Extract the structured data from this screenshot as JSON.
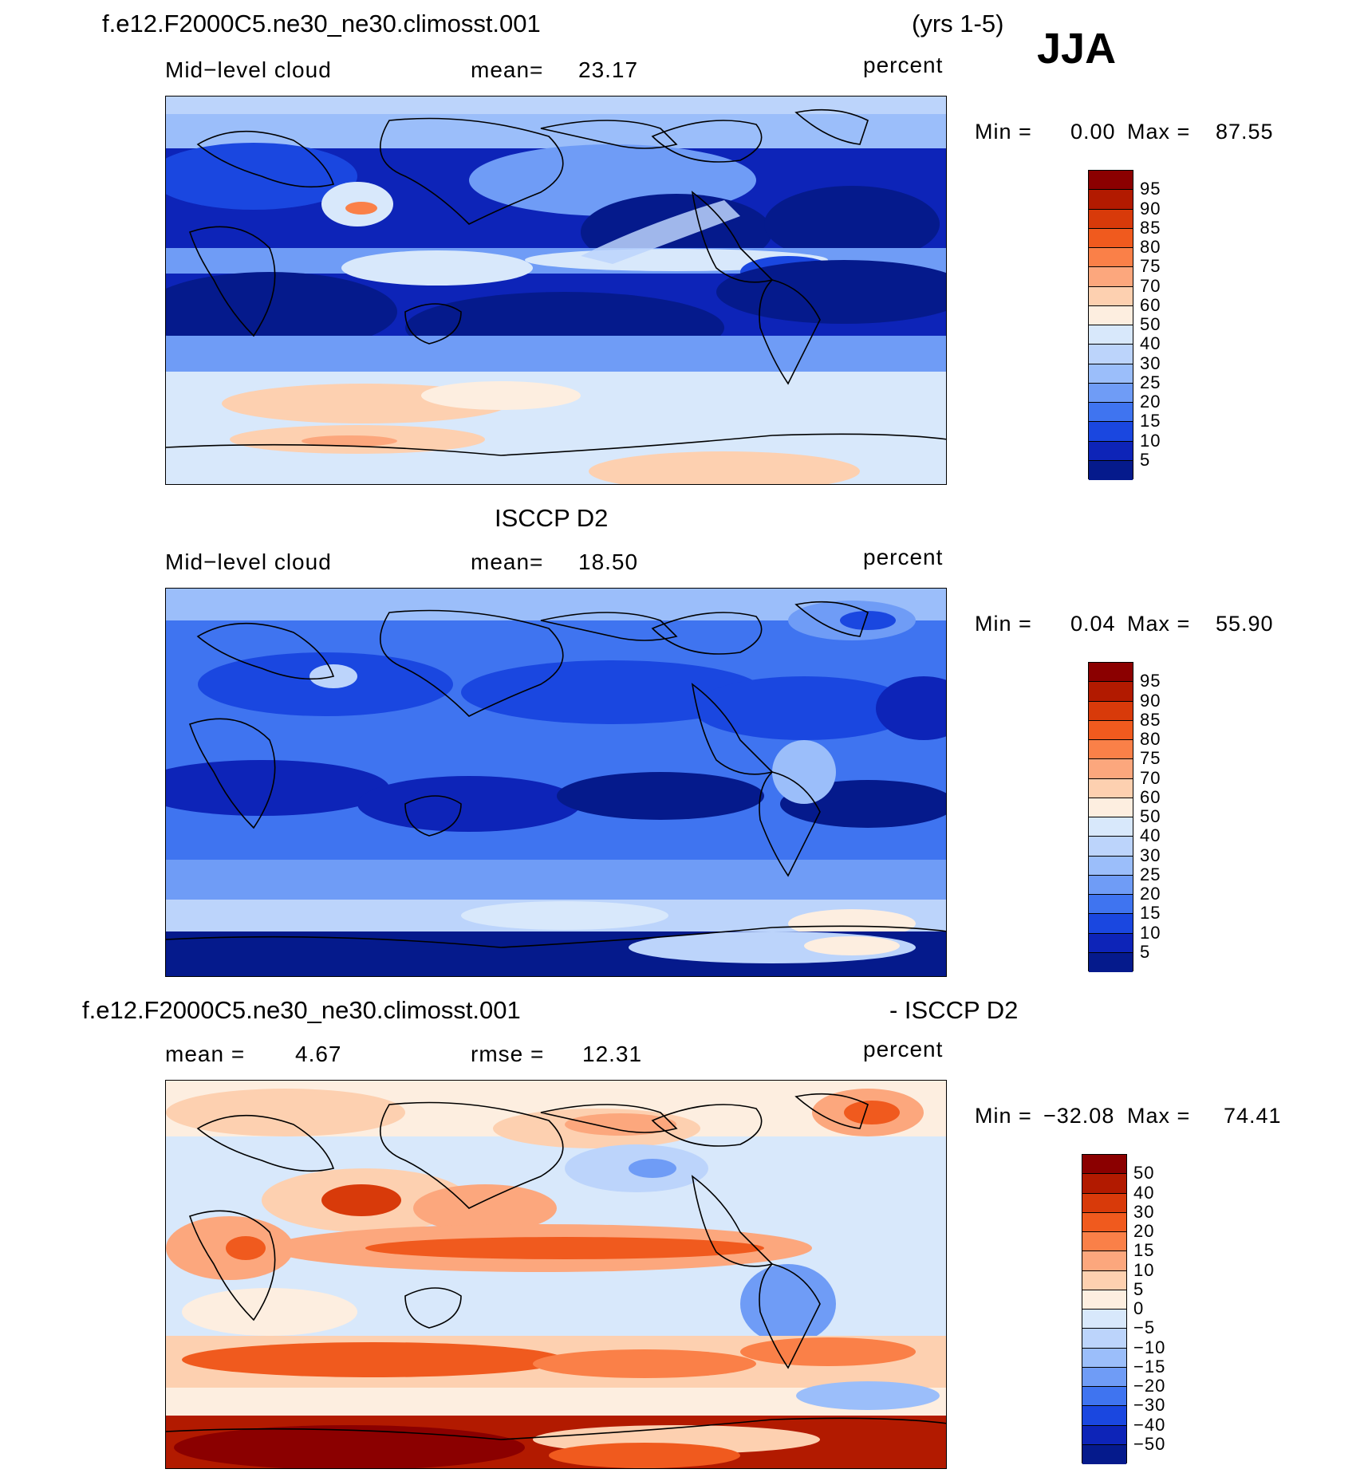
{
  "figure": {
    "case_name": "f.e12.F2000C5.ne30_ne30.climosst.001",
    "years": "(yrs 1-5)",
    "season": "JJA"
  },
  "panels": [
    {
      "id": "model",
      "left_label": "Mid−level cloud",
      "mean_label": "mean=",
      "mean_value": "23.17",
      "units": "percent",
      "min_label": "Min =",
      "min_value": "0.00",
      "max_label": "Max =",
      "max_value": "87.55"
    },
    {
      "id": "obs",
      "title": "ISCCP D2",
      "left_label": "Mid−level cloud",
      "mean_label": "mean=",
      "mean_value": "18.50",
      "units": "percent",
      "min_label": "Min =",
      "min_value": "0.04",
      "max_label": "Max =",
      "max_value": "55.90"
    },
    {
      "id": "diff",
      "title_left": "f.e12.F2000C5.ne30_ne30.climosst.001",
      "title_right": "- ISCCP D2",
      "mean_label": "mean =",
      "mean_value": "4.67",
      "rmse_label": "rmse =",
      "rmse_value": "12.31",
      "units": "percent",
      "min_label": "Min =",
      "min_value": "−32.08",
      "max_label": "Max =",
      "max_value": "74.41"
    }
  ],
  "colorbars": {
    "abs_levels": [
      "95",
      "90",
      "85",
      "80",
      "75",
      "70",
      "60",
      "50",
      "40",
      "30",
      "25",
      "20",
      "15",
      "10",
      "5"
    ],
    "abs_colors": [
      "#8b0000",
      "#b21a00",
      "#d83a0a",
      "#f05a1e",
      "#fa8048",
      "#fca77d",
      "#fdd0b0",
      "#fdeee0",
      "#d8e8fb",
      "#bcd4fb",
      "#9bbefa",
      "#6f9cf6",
      "#3f74f0",
      "#1a47e0",
      "#0d24b8",
      "#051a8c"
    ],
    "diff_levels": [
      "50",
      "40",
      "30",
      "20",
      "15",
      "10",
      "5",
      "0",
      "−5",
      "−10",
      "−15",
      "−20",
      "−30",
      "−40",
      "−50"
    ],
    "diff_colors": [
      "#8b0000",
      "#b21a00",
      "#d83a0a",
      "#f05a1e",
      "#fa8048",
      "#fca77d",
      "#fdd0b0",
      "#fdeee0",
      "#d8e8fb",
      "#bcd4fb",
      "#9bbefa",
      "#6f9cf6",
      "#3f74f0",
      "#1a47e0",
      "#0d24b8",
      "#051a8c"
    ]
  },
  "chart_data": [
    {
      "type": "heatmap",
      "subtitle": "Mid−level cloud",
      "units": "percent",
      "mean": 23.17,
      "min": 0.0,
      "max": 87.55,
      "levels": [
        5,
        10,
        15,
        20,
        25,
        30,
        40,
        50,
        60,
        70,
        75,
        80,
        85,
        90,
        95
      ]
    },
    {
      "type": "heatmap",
      "title": "ISCCP D2",
      "subtitle": "Mid−level cloud",
      "units": "percent",
      "mean": 18.5,
      "min": 0.04,
      "max": 55.9,
      "levels": [
        5,
        10,
        15,
        20,
        25,
        30,
        40,
        50,
        60,
        70,
        75,
        80,
        85,
        90,
        95
      ]
    },
    {
      "type": "heatmap",
      "title": "f.e12.F2000C5.ne30_ne30.climosst.001 - ISCCP D2",
      "units": "percent",
      "mean": 4.67,
      "rmse": 12.31,
      "min": -32.08,
      "max": 74.41,
      "levels": [
        -50,
        -40,
        -30,
        -20,
        -15,
        -10,
        -5,
        0,
        5,
        10,
        15,
        20,
        30,
        40,
        50
      ]
    }
  ]
}
